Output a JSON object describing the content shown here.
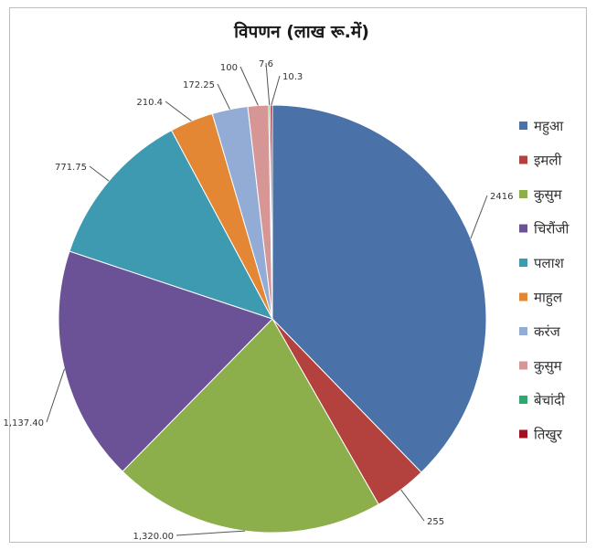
{
  "chart_data": {
    "type": "pie",
    "title": "विपणन (लाख रू.में)",
    "categories": [
      "महुआ",
      "इमली",
      "कुसुम",
      "चिरौंजी",
      "पलाश",
      "माहुल",
      "करंज",
      "कुसुम",
      "बेचांदी",
      "तिखुर"
    ],
    "values": [
      2416,
      255,
      1320.0,
      1137.4,
      771.75,
      210.4,
      172.25,
      100,
      7.6,
      10.3
    ],
    "value_labels": [
      "2416",
      "255",
      "1,320.00",
      "1,137.40",
      "771.75",
      "210.4",
      "172.25",
      "100",
      "7.6",
      "10.3"
    ],
    "colors": [
      "#4a71a8",
      "#b3413d",
      "#8caf4c",
      "#6b5296",
      "#3d9ab1",
      "#e48735",
      "#93acd6",
      "#d79696",
      "#2fa86f",
      "#a20f1f"
    ],
    "legend_position": "right",
    "start_angle_deg": 0,
    "direction": "clockwise"
  }
}
